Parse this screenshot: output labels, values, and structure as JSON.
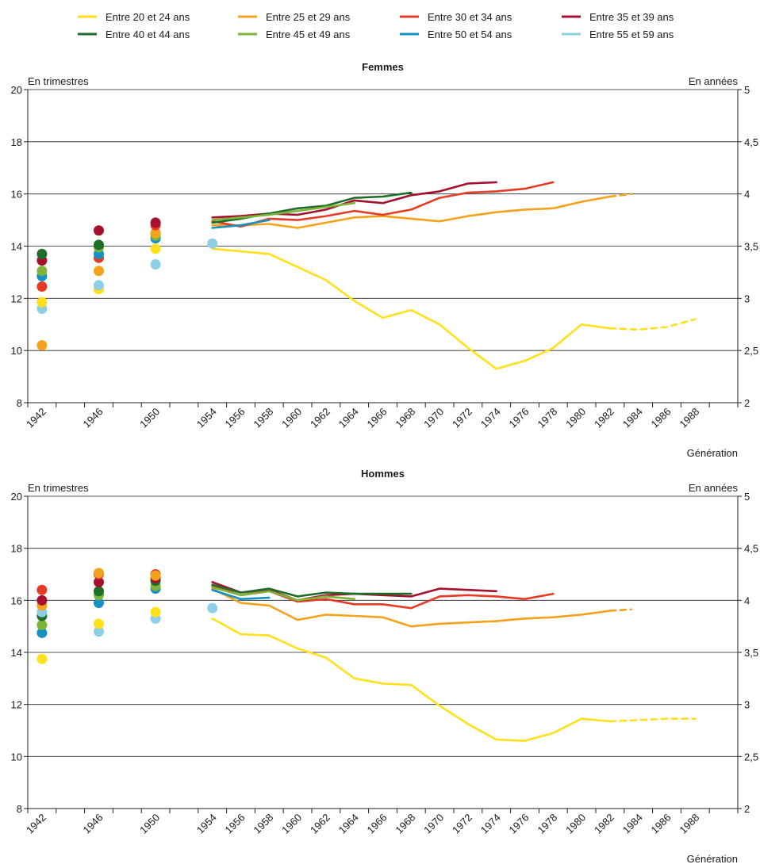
{
  "legend": [
    {
      "key": "a20",
      "label": "Entre 20 et 24 ans",
      "color": "#FFE01B"
    },
    {
      "key": "a25",
      "label": "Entre 25 et 29 ans",
      "color": "#F4A21B"
    },
    {
      "key": "a30",
      "label": "Entre 30 et 34 ans",
      "color": "#E63A24"
    },
    {
      "key": "a35",
      "label": "Entre 35 et 39 ans",
      "color": "#A5102E"
    },
    {
      "key": "a40",
      "label": "Entre 40 et 44 ans",
      "color": "#1E6E2A"
    },
    {
      "key": "a45",
      "label": "Entre 45 et 49 ans",
      "color": "#7DB53A"
    },
    {
      "key": "a50",
      "label": "Entre 50 et 54 ans",
      "color": "#1391C6"
    },
    {
      "key": "a55",
      "label": "Entre 55 et 59 ans",
      "color": "#8CCFE6"
    }
  ],
  "chart_data": [
    {
      "type": "line",
      "title": "Femmes",
      "ylabel": "En trimestres",
      "ylabel_right": "En années",
      "xlabel": "Génération",
      "ylim": [
        8,
        20
      ],
      "yticks": [
        8,
        10,
        12,
        14,
        16,
        18,
        20
      ],
      "yticks_right": [
        "2",
        "2,5",
        "3",
        "3,5",
        "4",
        "4,5",
        "5"
      ],
      "xticks": [
        "1942",
        "1946",
        "1950",
        "1954",
        "1956",
        "1958",
        "1960",
        "1962",
        "1964",
        "1966",
        "1968",
        "1970",
        "1972",
        "1974",
        "1976",
        "1978",
        "1980",
        "1982",
        "1984",
        "1986",
        "1988"
      ],
      "grid": true,
      "points": [
        {
          "series": "a25",
          "x": "1942",
          "y": 10.2
        },
        {
          "series": "a55",
          "x": "1942",
          "y": 11.6
        },
        {
          "series": "a20",
          "x": "1942",
          "y": 11.85
        },
        {
          "series": "a30",
          "x": "1942",
          "y": 12.45
        },
        {
          "series": "a50",
          "x": "1942",
          "y": 12.85
        },
        {
          "series": "a45",
          "x": "1942",
          "y": 13.05
        },
        {
          "series": "a35",
          "x": "1942",
          "y": 13.45
        },
        {
          "series": "a40",
          "x": "1942",
          "y": 13.7
        },
        {
          "series": "a20",
          "x": "1946",
          "y": 12.35
        },
        {
          "series": "a55",
          "x": "1946",
          "y": 12.5
        },
        {
          "series": "a25",
          "x": "1946",
          "y": 13.05
        },
        {
          "series": "a30",
          "x": "1946",
          "y": 13.55
        },
        {
          "series": "a50",
          "x": "1946",
          "y": 13.7
        },
        {
          "series": "a45",
          "x": "1946",
          "y": 13.95
        },
        {
          "series": "a40",
          "x": "1946",
          "y": 14.05
        },
        {
          "series": "a35",
          "x": "1946",
          "y": 14.6
        },
        {
          "series": "a55",
          "x": "1950",
          "y": 13.3
        },
        {
          "series": "a20",
          "x": "1950",
          "y": 13.9
        },
        {
          "series": "a50",
          "x": "1950",
          "y": 14.3
        },
        {
          "series": "a40",
          "x": "1950",
          "y": 14.5
        },
        {
          "series": "a45",
          "x": "1950",
          "y": 14.4
        },
        {
          "series": "a25",
          "x": "1950",
          "y": 14.5
        },
        {
          "series": "a30",
          "x": "1950",
          "y": 14.8
        },
        {
          "series": "a35",
          "x": "1950",
          "y": 14.9
        },
        {
          "series": "a55",
          "x": "1954",
          "y": 14.1
        }
      ],
      "series": [
        {
          "key": "a20",
          "x": [
            1954,
            1956,
            1958,
            1960,
            1962,
            1964,
            1966,
            1968,
            1970,
            1972,
            1974,
            1976,
            1978,
            1980,
            1982
          ],
          "values": [
            13.9,
            13.8,
            13.7,
            13.2,
            12.7,
            11.9,
            11.25,
            11.55,
            11.0,
            10.1,
            9.3,
            9.6,
            10.1,
            11.0,
            10.85
          ]
        },
        {
          "key": "a20",
          "dashed": true,
          "x": [
            1982,
            1984,
            1986,
            1988
          ],
          "values": [
            10.85,
            10.8,
            10.9,
            11.2
          ]
        },
        {
          "key": "a25",
          "x": [
            1954,
            1956,
            1958,
            1960,
            1962,
            1964,
            1966,
            1968,
            1970,
            1972,
            1974,
            1976,
            1978,
            1980,
            1982
          ],
          "values": [
            14.8,
            14.8,
            14.85,
            14.7,
            14.9,
            15.1,
            15.15,
            15.05,
            14.95,
            15.15,
            15.3,
            15.4,
            15.45,
            15.7,
            15.9
          ]
        },
        {
          "key": "a25",
          "dashed": true,
          "x": [
            1982,
            1983.5
          ],
          "values": [
            15.9,
            16.0
          ]
        },
        {
          "key": "a30",
          "x": [
            1954,
            1956,
            1958,
            1960,
            1962,
            1964,
            1966,
            1968,
            1970,
            1972,
            1974,
            1976,
            1978
          ],
          "values": [
            14.95,
            14.75,
            15.05,
            15.0,
            15.15,
            15.35,
            15.2,
            15.4,
            15.85,
            16.05,
            16.1,
            16.2,
            16.45
          ]
        },
        {
          "key": "a35",
          "x": [
            1954,
            1956,
            1958,
            1960,
            1962,
            1964,
            1966,
            1968,
            1970,
            1972,
            1974
          ],
          "values": [
            15.1,
            15.15,
            15.25,
            15.2,
            15.4,
            15.75,
            15.65,
            15.95,
            16.1,
            16.4,
            16.45
          ]
        },
        {
          "key": "a40",
          "x": [
            1954,
            1956,
            1958,
            1960,
            1962,
            1964,
            1966,
            1968
          ],
          "values": [
            14.9,
            15.05,
            15.25,
            15.45,
            15.55,
            15.85,
            15.9,
            16.05
          ]
        },
        {
          "key": "a45",
          "x": [
            1954,
            1956,
            1958,
            1960,
            1962,
            1964
          ],
          "values": [
            15.0,
            15.1,
            15.2,
            15.35,
            15.5,
            15.65
          ]
        },
        {
          "key": "a50",
          "x": [
            1954,
            1956,
            1958
          ],
          "values": [
            14.7,
            14.8,
            15.0
          ]
        }
      ]
    },
    {
      "type": "line",
      "title": "Hommes",
      "ylabel": "En trimestres",
      "ylabel_right": "En années",
      "xlabel": "Génération",
      "ylim": [
        8,
        20
      ],
      "yticks": [
        8,
        10,
        12,
        14,
        16,
        18,
        20
      ],
      "yticks_right": [
        "2",
        "2,5",
        "3",
        "3,5",
        "4",
        "4,5",
        "5"
      ],
      "xticks": [
        "1942",
        "1946",
        "1950",
        "1954",
        "1956",
        "1958",
        "1960",
        "1962",
        "1964",
        "1966",
        "1968",
        "1970",
        "1972",
        "1974",
        "1976",
        "1978",
        "1980",
        "1982",
        "1984",
        "1986",
        "1988"
      ],
      "grid": true,
      "points": [
        {
          "series": "a20",
          "x": "1942",
          "y": 13.75
        },
        {
          "series": "a50",
          "x": "1942",
          "y": 14.75
        },
        {
          "series": "a45",
          "x": "1942",
          "y": 15.05
        },
        {
          "series": "a40",
          "x": "1942",
          "y": 15.4
        },
        {
          "series": "a55",
          "x": "1942",
          "y": 15.55
        },
        {
          "series": "a25",
          "x": "1942",
          "y": 15.8
        },
        {
          "series": "a35",
          "x": "1942",
          "y": 16.0
        },
        {
          "series": "a30",
          "x": "1942",
          "y": 16.4
        },
        {
          "series": "a55",
          "x": "1946",
          "y": 14.8
        },
        {
          "series": "a20",
          "x": "1946",
          "y": 15.1
        },
        {
          "series": "a50",
          "x": "1946",
          "y": 15.9
        },
        {
          "series": "a45",
          "x": "1946",
          "y": 16.2
        },
        {
          "series": "a40",
          "x": "1946",
          "y": 16.35
        },
        {
          "series": "a35",
          "x": "1946",
          "y": 16.7
        },
        {
          "series": "a30",
          "x": "1946",
          "y": 17.0
        },
        {
          "series": "a25",
          "x": "1946",
          "y": 17.05
        },
        {
          "series": "a55",
          "x": "1950",
          "y": 15.3
        },
        {
          "series": "a20",
          "x": "1950",
          "y": 15.55
        },
        {
          "series": "a50",
          "x": "1950",
          "y": 16.45
        },
        {
          "series": "a45",
          "x": "1950",
          "y": 16.55
        },
        {
          "series": "a40",
          "x": "1950",
          "y": 16.75
        },
        {
          "series": "a35",
          "x": "1950",
          "y": 16.85
        },
        {
          "series": "a30",
          "x": "1950",
          "y": 17.0
        },
        {
          "series": "a25",
          "x": "1950",
          "y": 16.95
        },
        {
          "series": "a55",
          "x": "1954",
          "y": 15.7
        }
      ],
      "series": [
        {
          "key": "a20",
          "x": [
            1954,
            1956,
            1958,
            1960,
            1962,
            1964,
            1966,
            1968,
            1970,
            1972,
            1974,
            1976,
            1978,
            1980,
            1982
          ],
          "values": [
            15.3,
            14.7,
            14.65,
            14.15,
            13.8,
            13.0,
            12.8,
            12.75,
            11.95,
            11.25,
            10.65,
            10.6,
            10.9,
            11.45,
            11.35
          ]
        },
        {
          "key": "a20",
          "dashed": true,
          "x": [
            1982,
            1984,
            1986,
            1988
          ],
          "values": [
            11.35,
            11.4,
            11.45,
            11.45
          ]
        },
        {
          "key": "a25",
          "x": [
            1954,
            1956,
            1958,
            1960,
            1962,
            1964,
            1966,
            1968,
            1970,
            1972,
            1974,
            1976,
            1978,
            1980,
            1982
          ],
          "values": [
            16.45,
            15.9,
            15.8,
            15.25,
            15.45,
            15.4,
            15.35,
            15.0,
            15.1,
            15.15,
            15.2,
            15.3,
            15.35,
            15.45,
            15.6
          ]
        },
        {
          "key": "a25",
          "dashed": true,
          "x": [
            1982,
            1983.5
          ],
          "values": [
            15.6,
            15.65
          ]
        },
        {
          "key": "a30",
          "x": [
            1954,
            1956,
            1958,
            1960,
            1962,
            1964,
            1966,
            1968,
            1970,
            1972,
            1974,
            1976,
            1978
          ],
          "values": [
            16.55,
            16.2,
            16.35,
            15.95,
            16.05,
            15.85,
            15.85,
            15.7,
            16.15,
            16.2,
            16.15,
            16.05,
            16.25
          ]
        },
        {
          "key": "a35",
          "x": [
            1954,
            1956,
            1958,
            1960,
            1962,
            1964,
            1966,
            1968,
            1970,
            1972,
            1974
          ],
          "values": [
            16.7,
            16.3,
            16.4,
            16.0,
            16.2,
            16.25,
            16.2,
            16.15,
            16.45,
            16.4,
            16.35
          ]
        },
        {
          "key": "a40",
          "x": [
            1954,
            1956,
            1958,
            1960,
            1962,
            1964,
            1966,
            1968
          ],
          "values": [
            16.6,
            16.3,
            16.45,
            16.15,
            16.3,
            16.25,
            16.25,
            16.25
          ]
        },
        {
          "key": "a45",
          "x": [
            1954,
            1956,
            1958,
            1960,
            1962,
            1964
          ],
          "values": [
            16.5,
            16.2,
            16.35,
            16.0,
            16.15,
            16.05
          ]
        },
        {
          "key": "a50",
          "x": [
            1954,
            1956,
            1958
          ],
          "values": [
            16.4,
            16.05,
            16.1
          ]
        }
      ]
    }
  ]
}
